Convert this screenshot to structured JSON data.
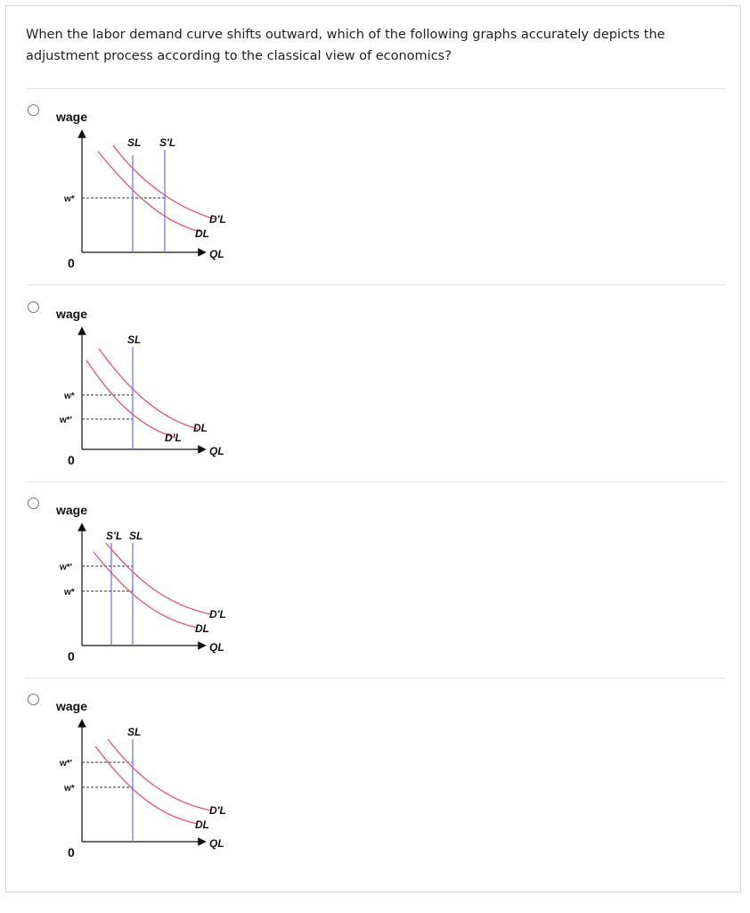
{
  "question": "When the labor demand curve shifts outward, which of the following graphs accurately depicts the adjustment process according to the classical view of economics?",
  "options": [
    {
      "y_label": "wage",
      "x_label": "QL",
      "origin": "0",
      "wage_labels": [
        "w*"
      ],
      "supply_labels": [
        "SL",
        "S'L"
      ],
      "demand_labels": [
        "D'L",
        "DL"
      ]
    },
    {
      "y_label": "wage",
      "x_label": "QL",
      "origin": "0",
      "wage_labels": [
        "w*",
        "w*'"
      ],
      "supply_labels": [
        "SL"
      ],
      "demand_labels": [
        "D'L",
        "DL"
      ]
    },
    {
      "y_label": "wage",
      "x_label": "QL",
      "origin": "0",
      "wage_labels": [
        "w*'",
        "w*"
      ],
      "supply_labels": [
        "S'L",
        "SL"
      ],
      "demand_labels": [
        "D'L",
        "DL"
      ]
    },
    {
      "y_label": "wage",
      "x_label": "QL",
      "origin": "0",
      "wage_labels": [
        "w*'",
        "w*"
      ],
      "supply_labels": [
        "SL"
      ],
      "demand_labels": [
        "D'L",
        "DL"
      ]
    }
  ]
}
